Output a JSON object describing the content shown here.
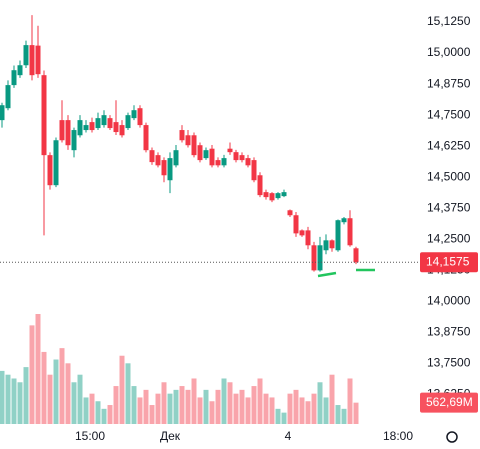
{
  "chart_data": {
    "type": "candlestick",
    "open": [
      14.73,
      14.778,
      14.871,
      14.911,
      14.951,
      15.032,
      15.03,
      14.911,
      14.589,
      14.468,
      14.73,
      14.73,
      14.609,
      14.669,
      14.69,
      14.722,
      14.698,
      14.71,
      14.738,
      14.722,
      14.71,
      14.698,
      14.738,
      14.778,
      14.71,
      14.609,
      14.589,
      14.569,
      14.488,
      14.548,
      14.69,
      14.669,
      14.669,
      14.629,
      14.577,
      14.615,
      14.569,
      14.548,
      14.615,
      14.601,
      14.589,
      14.577,
      14.569,
      14.508,
      14.44,
      14.436,
      14.416,
      14.424,
      14.367,
      14.347,
      14.286,
      14.286,
      14.226,
      14.125,
      14.206,
      14.246,
      14.206,
      14.319,
      14.335,
      14.214
    ],
    "high": [
      14.8,
      14.89,
      14.95,
      14.97,
      15.05,
      15.153,
      15.11,
      14.93,
      14.6,
      14.66,
      14.81,
      14.75,
      14.7,
      14.75,
      14.73,
      14.74,
      14.76,
      14.77,
      14.75,
      14.81,
      14.73,
      14.76,
      14.79,
      14.79,
      14.72,
      14.62,
      14.6,
      14.58,
      14.6,
      14.63,
      14.71,
      14.69,
      14.68,
      14.64,
      14.62,
      14.63,
      14.58,
      14.59,
      14.64,
      14.61,
      14.6,
      14.59,
      14.58,
      14.52,
      14.45,
      14.44,
      14.44,
      14.45,
      14.37,
      14.36,
      14.29,
      14.3,
      14.24,
      14.26,
      14.27,
      14.25,
      14.33,
      14.34,
      14.367,
      14.22
    ],
    "low": [
      14.7,
      14.77,
      14.86,
      14.9,
      14.94,
      14.89,
      14.9,
      14.266,
      14.45,
      14.46,
      14.64,
      14.61,
      14.58,
      14.66,
      14.68,
      14.68,
      14.69,
      14.7,
      14.69,
      14.67,
      14.66,
      14.69,
      14.73,
      14.7,
      14.6,
      14.55,
      14.54,
      14.48,
      14.436,
      14.54,
      14.64,
      14.62,
      14.58,
      14.56,
      14.57,
      14.54,
      14.54,
      14.54,
      14.59,
      14.56,
      14.56,
      14.54,
      14.48,
      14.42,
      14.41,
      14.4,
      14.41,
      14.42,
      14.34,
      14.26,
      14.26,
      14.21,
      14.12,
      14.12,
      14.19,
      14.2,
      14.2,
      14.31,
      14.22,
      14.15
    ],
    "close": [
      14.79,
      14.871,
      14.931,
      14.951,
      15.032,
      14.911,
      14.915,
      14.589,
      14.468,
      14.649,
      14.649,
      14.629,
      14.69,
      14.73,
      14.71,
      14.69,
      14.738,
      14.75,
      14.698,
      14.682,
      14.669,
      14.75,
      14.77,
      14.71,
      14.609,
      14.561,
      14.548,
      14.508,
      14.577,
      14.609,
      14.649,
      14.629,
      14.589,
      14.569,
      14.609,
      14.548,
      14.548,
      14.577,
      14.601,
      14.569,
      14.569,
      14.548,
      14.488,
      14.428,
      14.42,
      14.407,
      14.436,
      14.44,
      14.347,
      14.274,
      14.266,
      14.226,
      14.125,
      14.226,
      14.246,
      14.214,
      14.327,
      14.335,
      14.226,
      14.1575
    ],
    "volume": [
      1400,
      1300,
      1200,
      1100,
      1500,
      2600,
      2900,
      1900,
      1300,
      1700,
      2000,
      1600,
      1100,
      1300,
      700,
      800,
      600,
      400,
      500,
      1000,
      1800,
      1600,
      1000,
      700,
      900,
      500,
      800,
      1100,
      800,
      900,
      1000,
      900,
      1200,
      700,
      900,
      600,
      900,
      1200,
      1100,
      800,
      900,
      700,
      1000,
      1200,
      800,
      700,
      400,
      300,
      800,
      900,
      700,
      600,
      800,
      1100,
      700,
      1300,
      500,
      400,
      1200,
      562.69
    ],
    "up_color": "#089981",
    "down_color": "#f23645",
    "ylim": [
      13.5,
      15.2
    ],
    "yticks": [
      {
        "value": 15.125,
        "label": "15,1250"
      },
      {
        "value": 15.0,
        "label": "15,0000"
      },
      {
        "value": 14.875,
        "label": "14,8750"
      },
      {
        "value": 14.75,
        "label": "14,7500"
      },
      {
        "value": 14.625,
        "label": "14,6250"
      },
      {
        "value": 14.5,
        "label": "14,5000"
      },
      {
        "value": 14.375,
        "label": "14,3750"
      },
      {
        "value": 14.25,
        "label": "14,2500"
      },
      {
        "value": 14.125,
        "label": "14,1250"
      },
      {
        "value": 14.0,
        "label": "14,0000"
      },
      {
        "value": 13.875,
        "label": "13,8750"
      },
      {
        "value": 13.75,
        "label": "13,7500"
      },
      {
        "value": 13.625,
        "label": "13,6250"
      }
    ],
    "x_labels": [
      "15:00",
      "Дек",
      "4",
      "18:00"
    ],
    "last_price": {
      "value": 14.1575,
      "label": "14,1575"
    },
    "last_volume": {
      "value": 562.69,
      "label": "562,69M"
    }
  }
}
